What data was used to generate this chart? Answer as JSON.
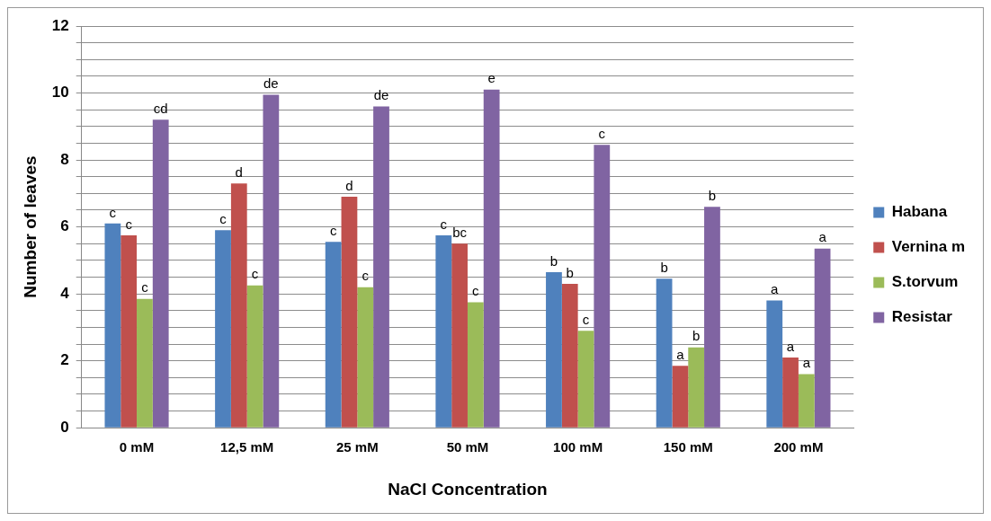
{
  "chart_data": {
    "type": "bar",
    "xlabel": "NaCl Concentration",
    "ylabel": "Number of leaves",
    "categories": [
      "0 mM",
      "12,5 mM",
      "25 mM",
      "50 mM",
      "100 mM",
      "150 mM",
      "200 mM"
    ],
    "series": [
      {
        "name": "Habana",
        "color": "#4f81bd",
        "values": [
          6.1,
          5.9,
          5.55,
          5.75,
          4.65,
          4.45,
          3.8
        ],
        "value_labels": [
          "c",
          "c",
          "c",
          "c",
          "b",
          "b",
          "a"
        ]
      },
      {
        "name": "Vernina m",
        "color": "#c0504d",
        "values": [
          5.75,
          7.3,
          6.9,
          5.5,
          4.3,
          1.85,
          2.1
        ],
        "value_labels": [
          "c",
          "d",
          "d",
          "bc",
          "b",
          "a",
          "a"
        ]
      },
      {
        "name": "S.torvum",
        "color": "#9bbb59",
        "values": [
          3.85,
          4.25,
          4.2,
          3.75,
          2.9,
          2.4,
          1.6
        ],
        "value_labels": [
          "c",
          "c",
          "c",
          "c",
          "c",
          "b",
          "a"
        ]
      },
      {
        "name": "Resistar",
        "color": "#8064a2",
        "values": [
          9.2,
          9.95,
          9.6,
          10.1,
          8.45,
          6.6,
          5.35
        ],
        "value_labels": [
          "cd",
          "de",
          "de",
          "e",
          "c",
          "b",
          "a"
        ]
      }
    ],
    "ylim": [
      0,
      12
    ],
    "yticks": [
      0,
      {
        "value": 0.5,
        "label": null
      },
      {
        "value": 1,
        "label": null
      },
      {
        "value": 1.5,
        "label": null
      },
      2,
      {
        "value": 2.5,
        "label": null
      },
      {
        "value": 3,
        "label": null
      },
      {
        "value": 3.5,
        "label": null
      },
      4,
      {
        "value": 4.5,
        "label": null
      },
      {
        "value": 5,
        "label": null
      },
      {
        "value": 5.5,
        "label": null
      },
      6,
      {
        "value": 6.5,
        "label": null
      },
      {
        "value": 7,
        "label": null
      },
      {
        "value": 7.5,
        "label": null
      },
      8,
      {
        "value": 8.5,
        "label": null
      },
      {
        "value": 9,
        "label": null
      },
      {
        "value": 9.5,
        "label": null
      },
      10,
      {
        "value": 10.5,
        "label": null
      },
      {
        "value": 11,
        "label": null
      },
      {
        "value": 11.5,
        "label": null
      },
      12
    ],
    "grid": "y",
    "legend": "right"
  }
}
